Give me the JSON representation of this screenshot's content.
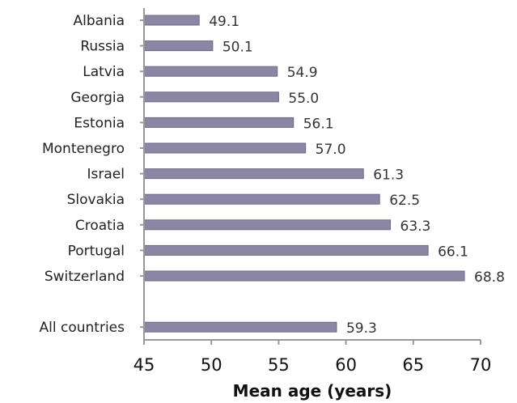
{
  "chart_data": {
    "type": "bar",
    "orientation": "horizontal",
    "categories": [
      "Albania",
      "Russia",
      "Latvia",
      "Georgia",
      "Estonia",
      "Montenegro",
      "Israel",
      "Slovakia",
      "Croatia",
      "Portugal",
      "Switzerland",
      "All countries"
    ],
    "values": [
      49.1,
      50.1,
      54.9,
      55.0,
      56.1,
      57.0,
      61.3,
      62.5,
      63.3,
      66.1,
      68.8,
      59.3
    ],
    "value_labels": [
      "49.1",
      "50.1",
      "54.9",
      "55.0",
      "56.1",
      "57.0",
      "61.3",
      "62.5",
      "63.3",
      "66.1",
      "68.8",
      "59.3"
    ],
    "xlabel": "Mean age (years)",
    "xlim": [
      45,
      70
    ],
    "xticks": [
      "45",
      "50",
      "55",
      "60",
      "65",
      "70"
    ],
    "grid": false,
    "bar_color": "#8a86a3",
    "bar_border_color": "#6f6a8a"
  }
}
